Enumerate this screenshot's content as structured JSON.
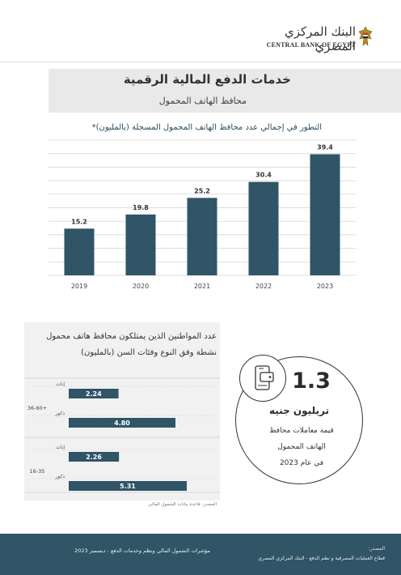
{
  "branding": {
    "bank_name_ar": "البنك المركزي المصري",
    "bank_name_en": "CENTRAL BANK OF EGYPT"
  },
  "header": {
    "title": "خدمات الدفع  المالية الرقمية",
    "subtitle": "محافظ الهاتف المحمول"
  },
  "colors": {
    "bar": "#2f5567",
    "footer": "#2f5567",
    "panel": "#f1f1f1"
  },
  "stat": {
    "icon": "mobile-wallet-icon",
    "value": "1.3",
    "unit": "تريليون جنيه",
    "description_lines": [
      "قيمة معاملات محافظ",
      "الهاتف المحمول",
      "في عام 2023"
    ]
  },
  "chart_data": [
    {
      "type": "bar",
      "title": "التطور في إجمالي عدد محافظ الهاتف المحمول المسجلة (بالمليون)*",
      "categories": [
        "2019",
        "2020",
        "2021",
        "2022",
        "2023"
      ],
      "values": [
        15.2,
        19.8,
        25.2,
        30.4,
        39.4
      ],
      "value_labels": [
        "15.2",
        "19.8",
        "25.2",
        "30.4",
        "39.4"
      ],
      "ylim": [
        0,
        44
      ],
      "gridlines": 10,
      "grid": true,
      "legend": "none"
    },
    {
      "type": "bar",
      "orientation": "horizontal",
      "title_lines": [
        "عدد المواطنين الذين يمتلكون محافظ هاتف محمول",
        "نشطة وفق النوع وفئات السن (بالمليون)"
      ],
      "groups": [
        {
          "name": "36-60+",
          "rows": [
            {
              "label": "إناث",
              "value": 2.24,
              "text": "2.24"
            },
            {
              "label": "ذكور",
              "value": 4.8,
              "text": "4.80"
            }
          ]
        },
        {
          "name": "16-35",
          "rows": [
            {
              "label": "إناث",
              "value": 2.26,
              "text": "2.26"
            },
            {
              "label": "ذكور",
              "value": 5.31,
              "text": "5.31"
            }
          ]
        }
      ],
      "xlim": [
        0,
        6
      ],
      "source": "المصدر: قاعدة بيانات الشمول المالي"
    }
  ],
  "footer": {
    "left": "مؤشرات الشمول المالي ونظم وخدمات الدفع - ديسمبر 2023",
    "source_label": "المصدر:",
    "source_text": "قطاع العمليات المصرفية و نظم الدفع - البنك المركزي المصري"
  }
}
